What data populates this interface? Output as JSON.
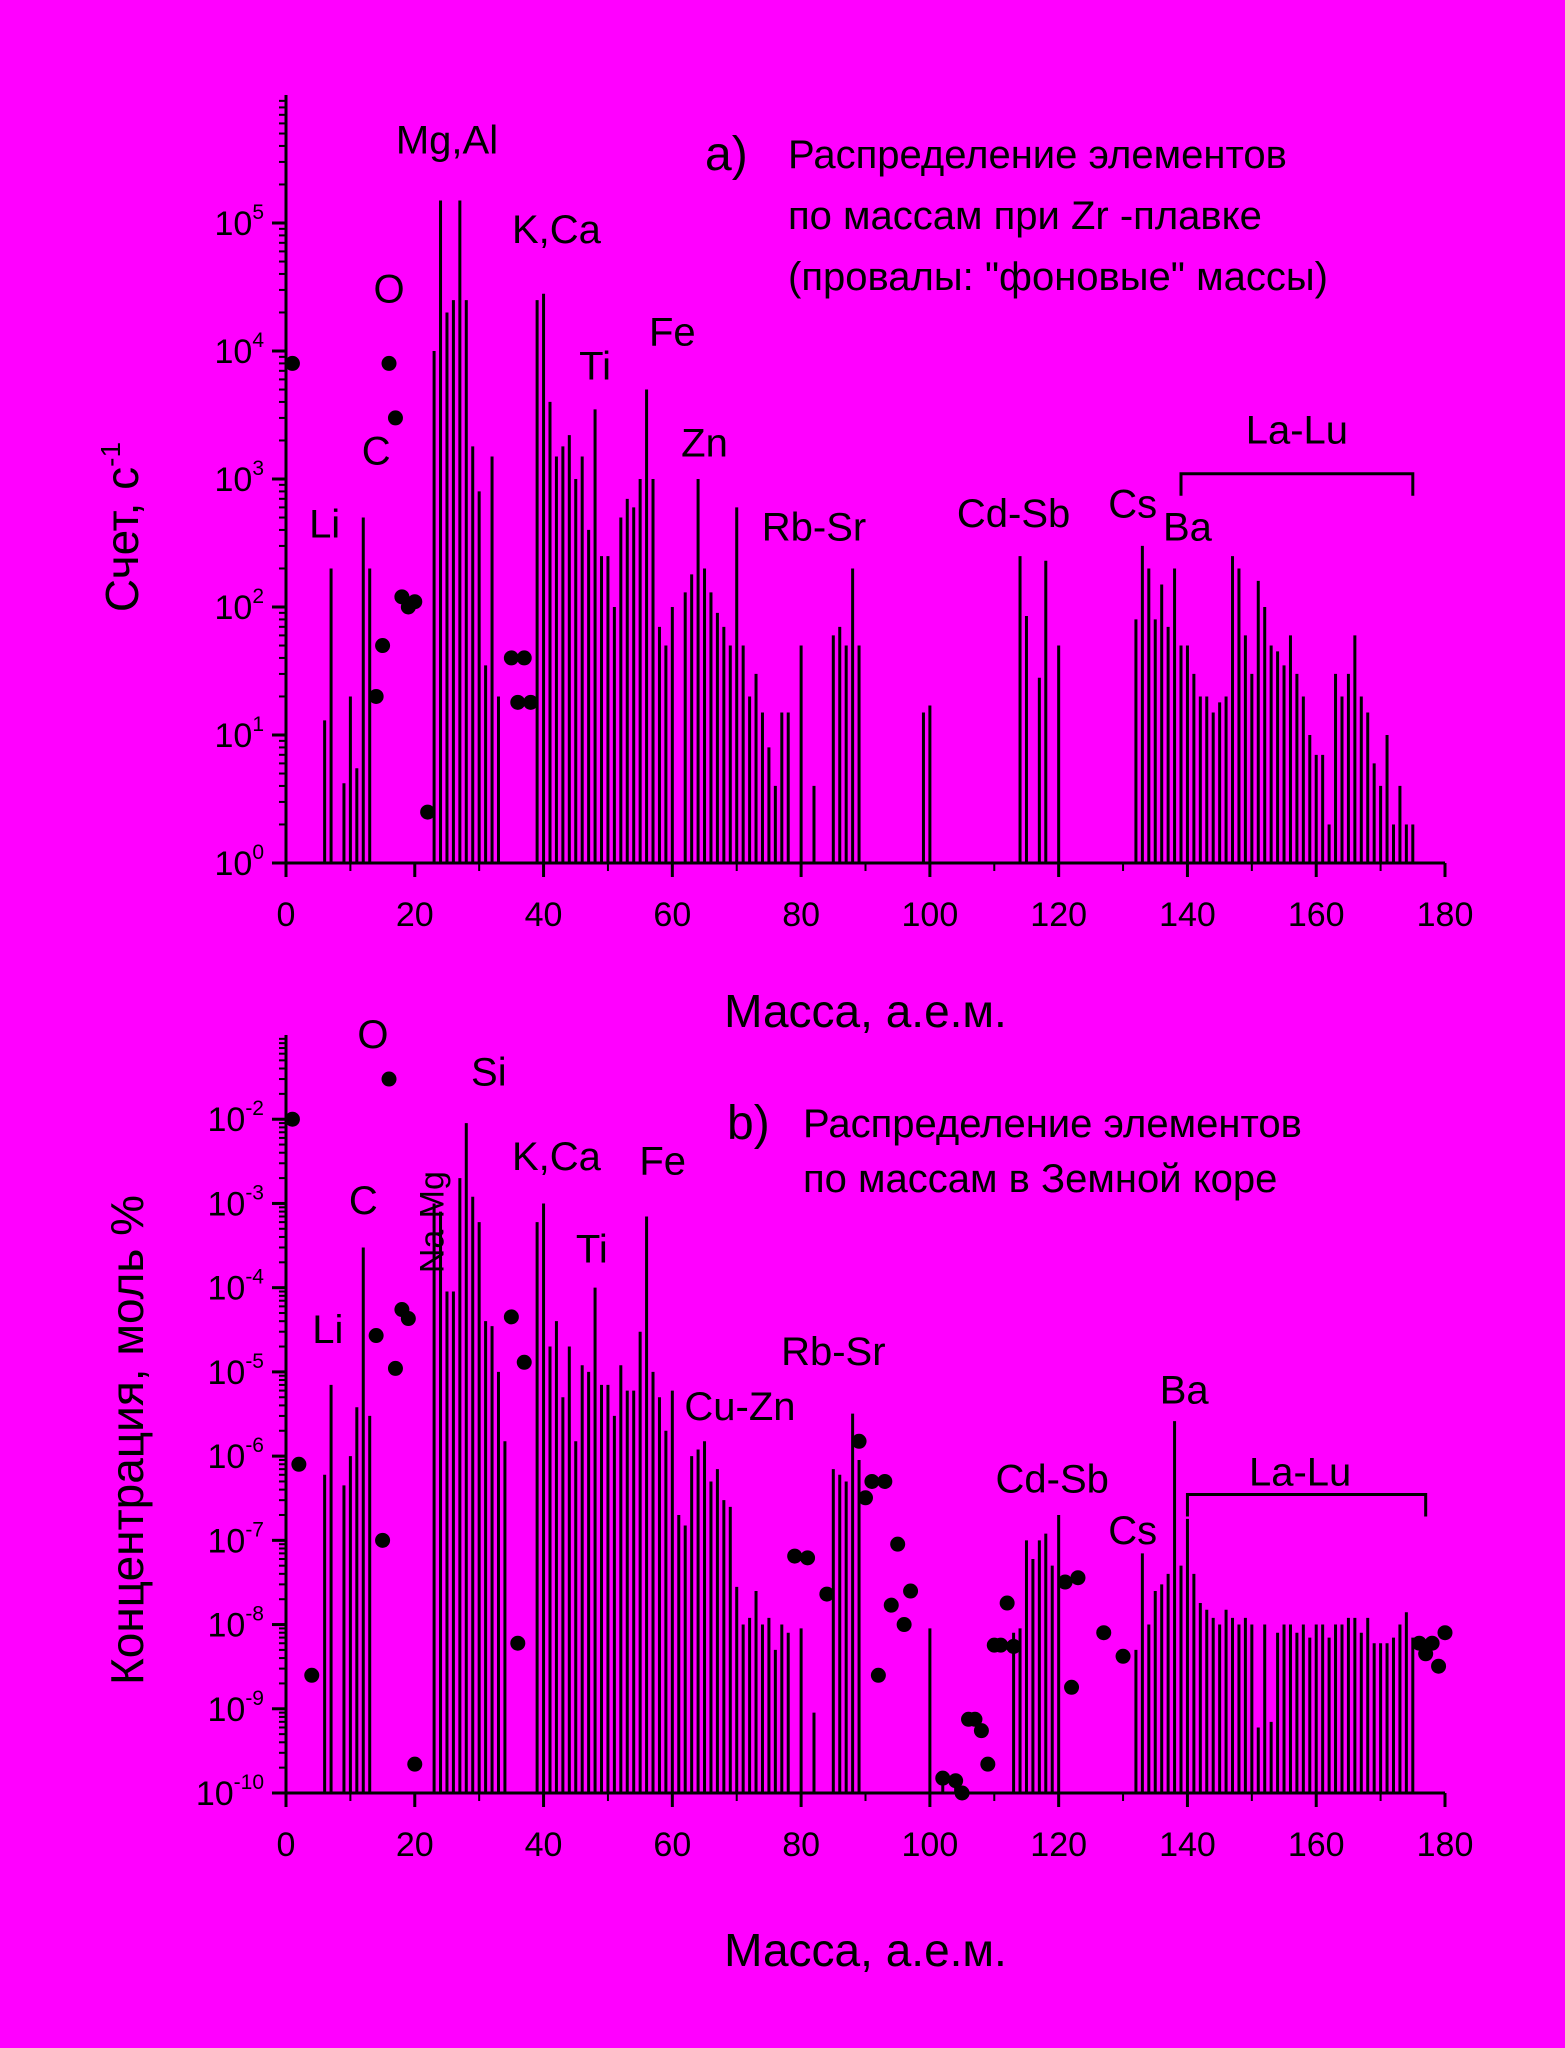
{
  "chart_data": [
    {
      "id": "a",
      "type": "bar",
      "yscale": "log",
      "xlim": [
        0,
        180
      ],
      "ylim": [
        1,
        1000000
      ],
      "xticks": [
        0,
        20,
        40,
        60,
        80,
        100,
        120,
        140,
        160,
        180
      ],
      "yticks": [
        {
          "base": "10",
          "exp": "0"
        },
        {
          "base": "10",
          "exp": "1"
        },
        {
          "base": "10",
          "exp": "2"
        },
        {
          "base": "10",
          "exp": "3"
        },
        {
          "base": "10",
          "exp": "4"
        },
        {
          "base": "10",
          "exp": "5"
        }
      ],
      "xlabel": "Масса, а.е.м.",
      "ylabel": "Счет, с",
      "ylabel_sup": "-1",
      "panel_letter": "a)",
      "title_lines": [
        "Распределение элементов",
        "по массам при Zr -плавке",
        "(провалы: \"фоновые\" массы)"
      ],
      "annotations": [
        {
          "text": "Mg,Al",
          "x": 25,
          "y": 350000.0
        },
        {
          "text": "K,Ca",
          "x": 42,
          "y": 70000.0
        },
        {
          "text": "O",
          "x": 16,
          "y": 24000.0
        },
        {
          "text": "Ti",
          "x": 48,
          "y": 6000.0
        },
        {
          "text": "Fe",
          "x": 60,
          "y": 11000.0
        },
        {
          "text": "Zn",
          "x": 65,
          "y": 1500.0
        },
        {
          "text": "C",
          "x": 14,
          "y": 1300.0
        },
        {
          "text": "Li",
          "x": 6,
          "y": 350.0
        },
        {
          "text": "Rb-Sr",
          "x": 82,
          "y": 330.0
        },
        {
          "text": "Cd-Sb",
          "x": 113,
          "y": 420.0
        },
        {
          "text": "Cs",
          "x": 131.5,
          "y": 500.0
        },
        {
          "text": "Ba",
          "x": 140,
          "y": 330.0
        },
        {
          "text": "La-Lu",
          "x": 157,
          "y": 1900.0
        }
      ],
      "bracket": {
        "x1": 139,
        "x2": 175,
        "y": 1100,
        "label": "La-Lu"
      },
      "bars": [
        [
          6,
          13
        ],
        [
          7,
          200
        ],
        [
          9,
          4.2
        ],
        [
          10,
          20
        ],
        [
          11,
          5.5
        ],
        [
          12,
          500
        ],
        [
          13,
          200
        ],
        [
          23,
          10000
        ],
        [
          24,
          150000
        ],
        [
          25,
          20000
        ],
        [
          26,
          25000
        ],
        [
          27,
          150000
        ],
        [
          28,
          25000
        ],
        [
          29,
          1800
        ],
        [
          30,
          800
        ],
        [
          31,
          35
        ],
        [
          32,
          1500
        ],
        [
          33,
          20
        ],
        [
          39,
          25000
        ],
        [
          40,
          28000
        ],
        [
          41,
          4000
        ],
        [
          42,
          1500
        ],
        [
          43,
          1800
        ],
        [
          44,
          2200
        ],
        [
          45,
          1000
        ],
        [
          46,
          1500
        ],
        [
          47,
          400
        ],
        [
          48,
          3500
        ],
        [
          49,
          250
        ],
        [
          50,
          250
        ],
        [
          51,
          100
        ],
        [
          52,
          500
        ],
        [
          53,
          700
        ],
        [
          54,
          600
        ],
        [
          55,
          1000
        ],
        [
          56,
          5000
        ],
        [
          57,
          1000
        ],
        [
          58,
          70
        ],
        [
          59,
          50
        ],
        [
          60,
          100
        ],
        [
          62,
          130
        ],
        [
          63,
          180
        ],
        [
          64,
          1000
        ],
        [
          65,
          200
        ],
        [
          66,
          130
        ],
        [
          67,
          90
        ],
        [
          68,
          70
        ],
        [
          69,
          50
        ],
        [
          70,
          600
        ],
        [
          71,
          50
        ],
        [
          72,
          20
        ],
        [
          73,
          30
        ],
        [
          74,
          15
        ],
        [
          75,
          8
        ],
        [
          76,
          4
        ],
        [
          77,
          15
        ],
        [
          78,
          15
        ],
        [
          80,
          50
        ],
        [
          82,
          4
        ],
        [
          85,
          60
        ],
        [
          86,
          70
        ],
        [
          87,
          50
        ],
        [
          88,
          200
        ],
        [
          89,
          50
        ],
        [
          99,
          15
        ],
        [
          100,
          17
        ],
        [
          114,
          250
        ],
        [
          115,
          85
        ],
        [
          117,
          28
        ],
        [
          118,
          230
        ],
        [
          120,
          50
        ],
        [
          132,
          80
        ],
        [
          133,
          300
        ],
        [
          134,
          200
        ],
        [
          135,
          80
        ],
        [
          136,
          150
        ],
        [
          137,
          70
        ],
        [
          138,
          200
        ],
        [
          139,
          50
        ],
        [
          140,
          50
        ],
        [
          141,
          30
        ],
        [
          142,
          20
        ],
        [
          143,
          20
        ],
        [
          144,
          15
        ],
        [
          145,
          18
        ],
        [
          146,
          20
        ],
        [
          147,
          250
        ],
        [
          148,
          200
        ],
        [
          149,
          60
        ],
        [
          150,
          30
        ],
        [
          151,
          160
        ],
        [
          152,
          100
        ],
        [
          153,
          50
        ],
        [
          154,
          45
        ],
        [
          155,
          35
        ],
        [
          156,
          60
        ],
        [
          157,
          30
        ],
        [
          158,
          20
        ],
        [
          159,
          10
        ],
        [
          160,
          7
        ],
        [
          161,
          7
        ],
        [
          162,
          2
        ],
        [
          163,
          30
        ],
        [
          164,
          20
        ],
        [
          165,
          30
        ],
        [
          166,
          60
        ],
        [
          167,
          20
        ],
        [
          168,
          15
        ],
        [
          169,
          6
        ],
        [
          170,
          4
        ],
        [
          171,
          10
        ],
        [
          172,
          2
        ],
        [
          173,
          4
        ],
        [
          174,
          2
        ],
        [
          175,
          2
        ]
      ],
      "points": [
        [
          1,
          8000
        ],
        [
          14,
          20
        ],
        [
          15,
          50
        ],
        [
          16,
          8000
        ],
        [
          17,
          3000
        ],
        [
          18,
          120
        ],
        [
          19,
          100
        ],
        [
          20,
          110
        ],
        [
          22,
          2.5
        ],
        [
          35,
          40
        ],
        [
          36,
          18
        ],
        [
          37,
          40
        ],
        [
          38,
          18
        ]
      ]
    },
    {
      "id": "b",
      "type": "bar",
      "yscale": "log",
      "xlim": [
        0,
        180
      ],
      "ylim": [
        1e-10,
        0.1
      ],
      "xticks": [
        0,
        20,
        40,
        60,
        80,
        100,
        120,
        140,
        160,
        180
      ],
      "yticks": [
        {
          "base": "10",
          "exp": "-10"
        },
        {
          "base": "10",
          "exp": "-9"
        },
        {
          "base": "10",
          "exp": "-8"
        },
        {
          "base": "10",
          "exp": "-7"
        },
        {
          "base": "10",
          "exp": "-6"
        },
        {
          "base": "10",
          "exp": "-5"
        },
        {
          "base": "10",
          "exp": "-4"
        },
        {
          "base": "10",
          "exp": "-3"
        },
        {
          "base": "10",
          "exp": "-2"
        }
      ],
      "xlabel": "Масса, а.е.м.",
      "ylabel": "Концентрация, моль %",
      "panel_letter": "b)",
      "title_lines": [
        "Распределение элементов",
        "по массам в Земной коре"
      ],
      "annotations": [
        {
          "text": "O",
          "x": 13.5,
          "y": 0.07
        },
        {
          "text": "Si",
          "x": 31.5,
          "y": 0.025
        },
        {
          "text": "K,Ca",
          "x": 42,
          "y": 0.0025
        },
        {
          "text": "Fe",
          "x": 58.5,
          "y": 0.0022
        },
        {
          "text": "C",
          "x": 12,
          "y": 0.00075
        },
        {
          "text": "Ti",
          "x": 47.5,
          "y": 0.0002
        },
        {
          "text": "Li",
          "x": 6.5,
          "y": 2.2e-05
        },
        {
          "text": "Cu-Zn",
          "x": 70.5,
          "y": 2.7e-06
        },
        {
          "text": "Rb-Sr",
          "x": 85,
          "y": 1.2e-05
        },
        {
          "text": "Ba",
          "x": 139.5,
          "y": 4.2e-06
        },
        {
          "text": "La-Lu",
          "x": 157.5,
          "y": 4.5e-07
        },
        {
          "text": "Cd-Sb",
          "x": 119,
          "y": 3.7e-07
        },
        {
          "text": "Cs",
          "x": 131.5,
          "y": 9e-08
        }
      ],
      "vertical_annotations": [
        {
          "text": "Na-Mg",
          "x": 24.5,
          "y": 0.0006
        }
      ],
      "bracket": {
        "x1": 140,
        "x2": 177,
        "y": 3.5e-07,
        "label": "La-Lu"
      },
      "bars": [
        [
          6,
          6e-07
        ],
        [
          7,
          7e-06
        ],
        [
          9,
          4.5e-07
        ],
        [
          10,
          1e-06
        ],
        [
          11,
          3.8e-06
        ],
        [
          12,
          0.0003
        ],
        [
          13,
          3e-06
        ],
        [
          23,
          0.001
        ],
        [
          24,
          0.0008
        ],
        [
          25,
          9e-05
        ],
        [
          26,
          9e-05
        ],
        [
          27,
          0.002
        ],
        [
          28,
          0.009
        ],
        [
          29,
          0.0012
        ],
        [
          30,
          0.0006
        ],
        [
          31,
          4e-05
        ],
        [
          32,
          3.5e-05
        ],
        [
          33,
          1e-05
        ],
        [
          34,
          1.5e-06
        ],
        [
          39,
          0.0006
        ],
        [
          40,
          0.001
        ],
        [
          41,
          2e-05
        ],
        [
          42,
          4e-05
        ],
        [
          43,
          5e-06
        ],
        [
          44,
          2e-05
        ],
        [
          45,
          1.5e-06
        ],
        [
          46,
          1.2e-05
        ],
        [
          47,
          1e-05
        ],
        [
          48,
          0.0001
        ],
        [
          49,
          7e-06
        ],
        [
          50,
          7e-06
        ],
        [
          51,
          3e-06
        ],
        [
          52,
          1.2e-05
        ],
        [
          53,
          6e-06
        ],
        [
          54,
          6e-06
        ],
        [
          55,
          3e-05
        ],
        [
          56,
          0.0007
        ],
        [
          57,
          1e-05
        ],
        [
          58,
          5e-06
        ],
        [
          59,
          2e-06
        ],
        [
          60,
          6e-06
        ],
        [
          61,
          2e-07
        ],
        [
          62,
          1.5e-07
        ],
        [
          63,
          1e-06
        ],
        [
          64,
          1.2e-06
        ],
        [
          65,
          1.5e-06
        ],
        [
          66,
          5e-07
        ],
        [
          67,
          7e-07
        ],
        [
          68,
          3e-07
        ],
        [
          69,
          2.5e-07
        ],
        [
          70,
          2.8e-08
        ],
        [
          71,
          1e-08
        ],
        [
          72,
          1.2e-08
        ],
        [
          73,
          2.5e-08
        ],
        [
          74,
          1e-08
        ],
        [
          75,
          1.2e-08
        ],
        [
          76,
          5e-09
        ],
        [
          77,
          1e-08
        ],
        [
          78,
          8e-09
        ],
        [
          80,
          9e-09
        ],
        [
          82,
          9e-10
        ],
        [
          85,
          7e-07
        ],
        [
          86,
          6e-07
        ],
        [
          87,
          5e-07
        ],
        [
          88,
          3.2e-06
        ],
        [
          89,
          9e-07
        ],
        [
          100,
          9e-09
        ],
        [
          102,
          1.5e-10
        ],
        [
          104,
          1.2e-10
        ],
        [
          113,
          8e-09
        ],
        [
          114,
          9e-09
        ],
        [
          115,
          1e-07
        ],
        [
          116,
          6e-08
        ],
        [
          117,
          1e-07
        ],
        [
          118,
          1.2e-07
        ],
        [
          119,
          5e-08
        ],
        [
          120,
          2e-07
        ],
        [
          132,
          5e-09
        ],
        [
          133,
          7e-08
        ],
        [
          134,
          1e-08
        ],
        [
          135,
          2.5e-08
        ],
        [
          136,
          3e-08
        ],
        [
          137,
          4e-08
        ],
        [
          138,
          2.6e-06
        ],
        [
          139,
          5e-08
        ],
        [
          140,
          1.8e-07
        ],
        [
          141,
          4e-08
        ],
        [
          142,
          1.8e-08
        ],
        [
          143,
          1.5e-08
        ],
        [
          144,
          1.2e-08
        ],
        [
          145,
          1e-08
        ],
        [
          146,
          1.5e-08
        ],
        [
          147,
          1.2e-08
        ],
        [
          148,
          1e-08
        ],
        [
          149,
          1.2e-08
        ],
        [
          150,
          1e-08
        ],
        [
          151,
          6e-10
        ],
        [
          152,
          1e-08
        ],
        [
          153,
          7e-10
        ],
        [
          154,
          8e-09
        ],
        [
          155,
          1e-08
        ],
        [
          156,
          1e-08
        ],
        [
          157,
          8e-09
        ],
        [
          158,
          1e-08
        ],
        [
          159,
          7e-09
        ],
        [
          160,
          1e-08
        ],
        [
          161,
          1e-08
        ],
        [
          162,
          7e-09
        ],
        [
          163,
          1e-08
        ],
        [
          164,
          1e-08
        ],
        [
          165,
          1.2e-08
        ],
        [
          166,
          1.2e-08
        ],
        [
          167,
          8e-09
        ],
        [
          168,
          1.2e-08
        ],
        [
          169,
          6e-09
        ],
        [
          170,
          6e-09
        ],
        [
          171,
          6e-09
        ],
        [
          172,
          7e-09
        ],
        [
          173,
          1e-08
        ],
        [
          174,
          1.4e-08
        ],
        [
          175,
          7e-09
        ]
      ],
      "points": [
        [
          1,
          0.01
        ],
        [
          2,
          8e-07
        ],
        [
          4,
          2.5e-09
        ],
        [
          14,
          2.7e-05
        ],
        [
          15,
          1e-07
        ],
        [
          16,
          0.03
        ],
        [
          17,
          1.1e-05
        ],
        [
          18,
          5.5e-05
        ],
        [
          19,
          4.3e-05
        ],
        [
          20,
          2.2e-10
        ],
        [
          35,
          4.5e-05
        ],
        [
          36,
          6e-09
        ],
        [
          37,
          1.3e-05
        ],
        [
          79,
          6.5e-08
        ],
        [
          81,
          6.2e-08
        ],
        [
          84,
          2.3e-08
        ],
        [
          89,
          1.5e-06
        ],
        [
          90,
          3.2e-07
        ],
        [
          91,
          5e-07
        ],
        [
          92,
          2.5e-09
        ],
        [
          93,
          5e-07
        ],
        [
          94,
          1.7e-08
        ],
        [
          95,
          9e-08
        ],
        [
          96,
          1e-08
        ],
        [
          97,
          2.5e-08
        ],
        [
          102,
          1.5e-10
        ],
        [
          104,
          1.4e-10
        ],
        [
          105,
          1e-10
        ],
        [
          106,
          7.5e-10
        ],
        [
          107,
          7.5e-10
        ],
        [
          108,
          5.5e-10
        ],
        [
          109,
          2.2e-10
        ],
        [
          110,
          5.7e-09
        ],
        [
          111,
          5.7e-09
        ],
        [
          112,
          1.8e-08
        ],
        [
          113,
          5.5e-09
        ],
        [
          121,
          3.2e-08
        ],
        [
          122,
          1.8e-09
        ],
        [
          123,
          3.6e-08
        ],
        [
          127,
          8e-09
        ],
        [
          130,
          4.2e-09
        ],
        [
          176,
          6e-09
        ],
        [
          177,
          4.5e-09
        ],
        [
          178,
          6e-09
        ],
        [
          179,
          3.2e-09
        ],
        [
          180,
          8e-09
        ]
      ]
    }
  ]
}
